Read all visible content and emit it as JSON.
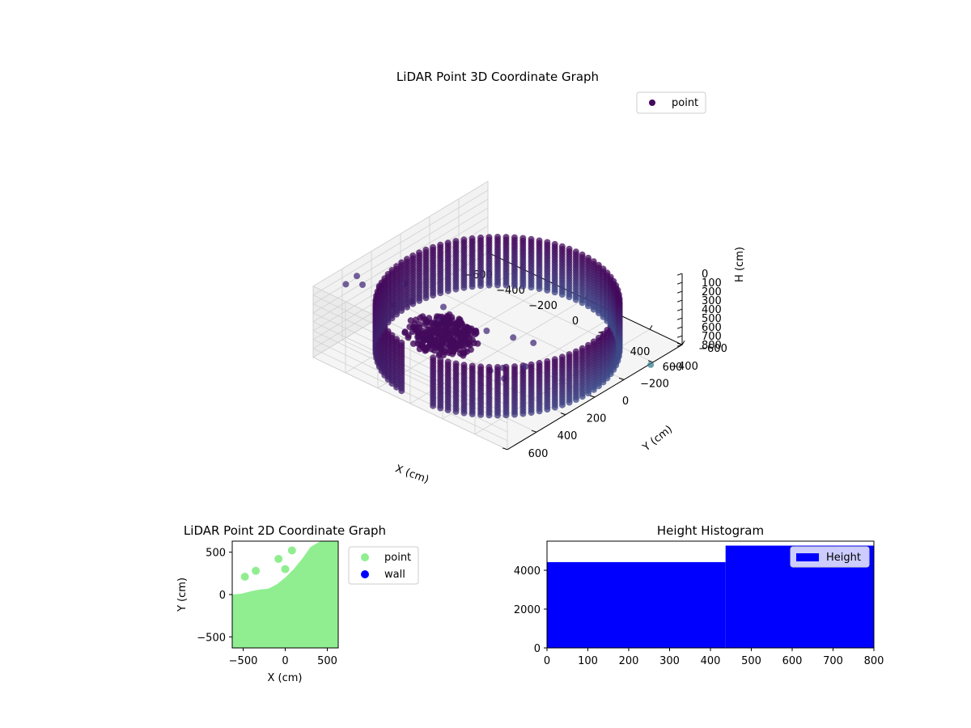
{
  "chart_data": [
    {
      "type": "scatter3d",
      "title": "LiDAR Point 3D Coordinate Graph",
      "xlabel": "X (cm)",
      "ylabel": "Y (cm)",
      "zlabel": "H (cm)",
      "xlim": [
        -600,
        600
      ],
      "ylim": [
        -600,
        600
      ],
      "zlim": [
        0,
        800
      ],
      "z_inverted": true,
      "xticks": [
        -600,
        -400,
        -200,
        0,
        200,
        400,
        600
      ],
      "yticks": [
        -600,
        -400,
        -200,
        0,
        200,
        400,
        600
      ],
      "zticks": [
        0,
        100,
        200,
        300,
        400,
        500,
        600,
        700,
        800
      ],
      "legend": {
        "placement": "top-right",
        "entries": [
          "point"
        ]
      },
      "colormap": "viridis",
      "marker_color": "#440a5c",
      "grid": true,
      "series": [
        {
          "name": "point",
          "wall_ring": {
            "radius_cm": 560,
            "h_top": 250,
            "h_bottom": 800,
            "ring_gap_sector_deg": [
              80,
              100
            ]
          },
          "clusters": [
            {
              "x": -80,
              "y": 330,
              "h": 330,
              "radius": 150
            },
            {
              "x": 20,
              "y": 360,
              "h": 300,
              "radius": 150
            }
          ],
          "scattered": [
            {
              "x": -560,
              "y": 420,
              "h": 120
            },
            {
              "x": -520,
              "y": 350,
              "h": 160
            },
            {
              "x": -480,
              "y": 280,
              "h": 210
            },
            {
              "x": -420,
              "y": 170,
              "h": 240
            },
            {
              "x": -300,
              "y": 260,
              "h": 250
            },
            {
              "x": -200,
              "y": 150,
              "h": 330
            },
            {
              "x": -120,
              "y": 260,
              "h": 300
            },
            {
              "x": 40,
              "y": 120,
              "h": 420
            },
            {
              "x": 150,
              "y": 60,
              "h": 460
            },
            {
              "x": 230,
              "y": 10,
              "h": 500
            },
            {
              "x": 330,
              "y": 330,
              "h": 380
            },
            {
              "x": 380,
              "y": 230,
              "h": 420
            },
            {
              "x": 440,
              "y": 540,
              "h": 110
            },
            {
              "x": -330,
              "y": 350,
              "h": 220
            },
            {
              "x": -600,
              "y": 300,
              "h": 180
            },
            {
              "x": 580,
              "y": 600,
              "h": 20
            }
          ]
        }
      ]
    },
    {
      "type": "scatter",
      "title": "LiDAR Point 2D Coordinate Graph",
      "xlabel": "X (cm)",
      "ylabel": "Y (cm)",
      "xlim": [
        -630,
        630
      ],
      "ylim": [
        -630,
        630
      ],
      "xticks": [
        -500,
        0,
        500
      ],
      "yticks": [
        -500,
        0,
        500
      ],
      "legend": {
        "placement": "outside-right",
        "entries": [
          "point",
          "wall"
        ]
      },
      "series": [
        {
          "name": "point",
          "color": "#90ee90",
          "region_polygon": [
            [
              -630,
              0
            ],
            [
              -520,
              10
            ],
            [
              -400,
              40
            ],
            [
              -300,
              60
            ],
            [
              -200,
              70
            ],
            [
              -100,
              120
            ],
            [
              0,
              200
            ],
            [
              100,
              300
            ],
            [
              200,
              420
            ],
            [
              300,
              560
            ],
            [
              420,
              630
            ],
            [
              630,
              630
            ],
            [
              630,
              -630
            ],
            [
              -630,
              -630
            ]
          ],
          "extra_points": [
            {
              "x": -480,
              "y": 210
            },
            {
              "x": -350,
              "y": 280
            },
            {
              "x": -80,
              "y": 420
            },
            {
              "x": 0,
              "y": 300
            },
            {
              "x": 80,
              "y": 520
            }
          ]
        },
        {
          "name": "wall",
          "color": "#0000ff",
          "points": []
        }
      ]
    },
    {
      "type": "histogram",
      "title": "Height Histogram",
      "xlim": [
        0,
        800
      ],
      "ylim": [
        0,
        5500
      ],
      "xticks": [
        0,
        100,
        200,
        300,
        400,
        500,
        600,
        700,
        800
      ],
      "yticks": [
        0,
        2000,
        4000
      ],
      "legend": {
        "placement": "top-right",
        "entries": [
          "Height"
        ]
      },
      "series": [
        {
          "name": "Height",
          "color": "#0000ff",
          "bins": [
            {
              "from": 0,
              "to": 437,
              "count": 4420
            },
            {
              "from": 437,
              "to": 800,
              "count": 5270
            }
          ]
        }
      ]
    }
  ]
}
